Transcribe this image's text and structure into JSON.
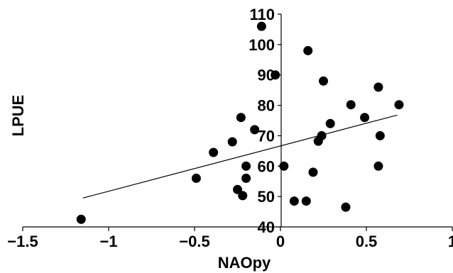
{
  "chart_data": {
    "type": "scatter",
    "title": "",
    "xlabel": "NAOpy",
    "ylabel": "LPUE",
    "xlim": [
      -1.5,
      1
    ],
    "ylim": [
      40,
      110
    ],
    "x_ticks": [
      -1.5,
      -1,
      -0.5,
      0,
      0.5,
      1
    ],
    "x_tick_labels": [
      "−1.5",
      "−1",
      "−0.5",
      "0",
      "0.5",
      "1"
    ],
    "y_ticks": [
      40,
      50,
      60,
      70,
      80,
      90,
      100,
      110
    ],
    "y_tick_labels": [
      "40",
      "50",
      "60",
      "70",
      "80",
      "90",
      "100",
      "110"
    ],
    "grid": false,
    "marker_color": "#000000",
    "series": [
      {
        "points": [
          {
            "x": -1.16,
            "y": 42.5
          },
          {
            "x": -0.49,
            "y": 56
          },
          {
            "x": -0.39,
            "y": 64.5
          },
          {
            "x": -0.28,
            "y": 68
          },
          {
            "x": -0.25,
            "y": 52.3
          },
          {
            "x": -0.23,
            "y": 76
          },
          {
            "x": -0.22,
            "y": 50.3
          },
          {
            "x": -0.2,
            "y": 60
          },
          {
            "x": -0.2,
            "y": 56
          },
          {
            "x": -0.15,
            "y": 72
          },
          {
            "x": -0.11,
            "y": 106
          },
          {
            "x": -0.03,
            "y": 90
          },
          {
            "x": 0.02,
            "y": 60
          },
          {
            "x": 0.08,
            "y": 48.5
          },
          {
            "x": 0.15,
            "y": 48.5
          },
          {
            "x": 0.16,
            "y": 98
          },
          {
            "x": 0.19,
            "y": 58
          },
          {
            "x": 0.22,
            "y": 68.2
          },
          {
            "x": 0.24,
            "y": 70
          },
          {
            "x": 0.25,
            "y": 88
          },
          {
            "x": 0.29,
            "y": 74
          },
          {
            "x": 0.38,
            "y": 46.5
          },
          {
            "x": 0.41,
            "y": 80.2
          },
          {
            "x": 0.49,
            "y": 76
          },
          {
            "x": 0.57,
            "y": 86
          },
          {
            "x": 0.57,
            "y": 60
          },
          {
            "x": 0.58,
            "y": 70
          },
          {
            "x": 0.69,
            "y": 80.2
          }
        ]
      }
    ],
    "trendline": {
      "x": [
        -1.15,
        0.68
      ],
      "y": [
        49.5,
        76.8
      ]
    }
  }
}
